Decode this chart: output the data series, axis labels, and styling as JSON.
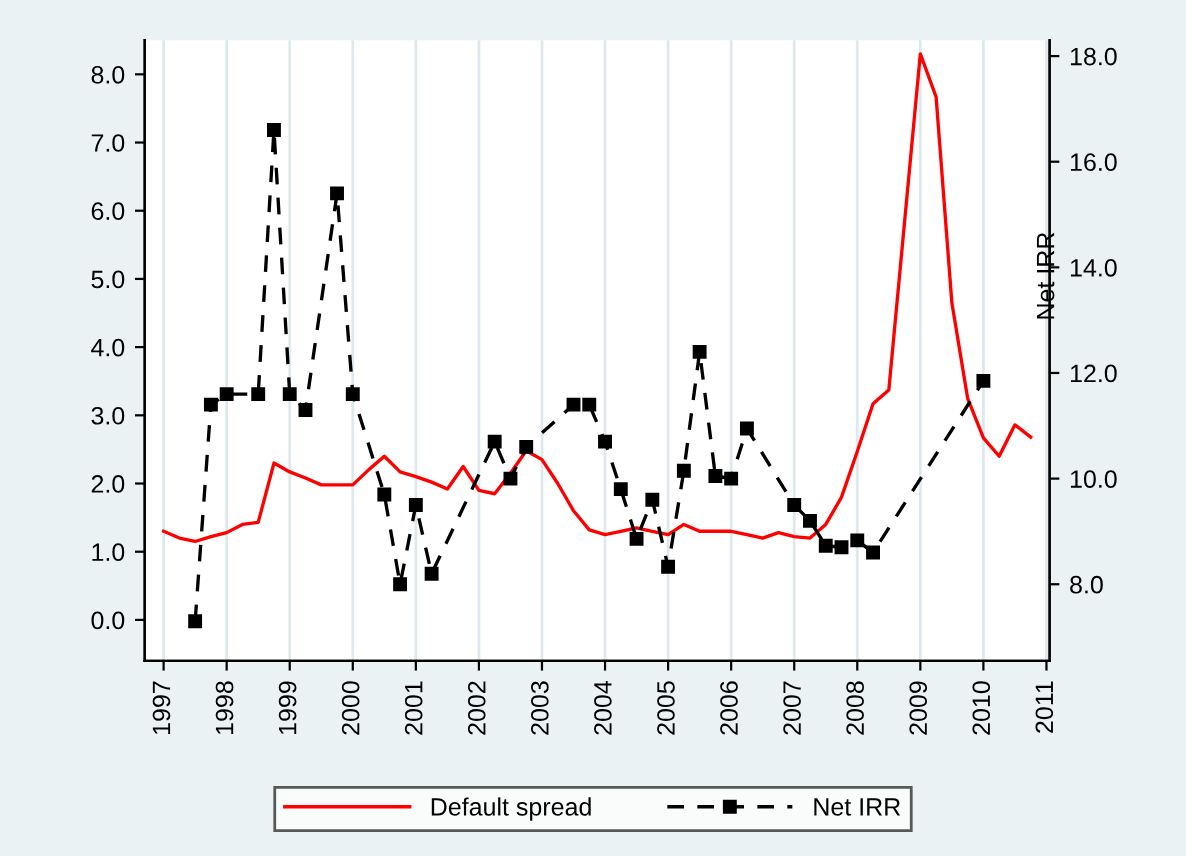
{
  "chart_data": {
    "type": "line",
    "y2label": "Net IRR",
    "xlim": [
      1996.7,
      2011.05
    ],
    "xticks": [
      1997,
      1998,
      1999,
      2000,
      2001,
      2002,
      2003,
      2004,
      2005,
      2006,
      2007,
      2008,
      2009,
      2010,
      2011
    ],
    "ylim": [
      -0.6,
      8.5
    ],
    "yticks": [
      {
        "value": 0,
        "label": "0.0"
      },
      {
        "value": 1,
        "label": "1.0"
      },
      {
        "value": 2,
        "label": "2.0"
      },
      {
        "value": 3,
        "label": "3.0"
      },
      {
        "value": 4,
        "label": "4.0"
      },
      {
        "value": 5,
        "label": "5.0"
      },
      {
        "value": 6,
        "label": "6.0"
      },
      {
        "value": 7,
        "label": "7.0"
      },
      {
        "value": 8,
        "label": "8.0"
      }
    ],
    "y2lim": [
      6.55,
      18.3
    ],
    "y2ticks": [
      {
        "value": 8,
        "label": "8.0"
      },
      {
        "value": 10,
        "label": "10.0"
      },
      {
        "value": 12,
        "label": "12.0"
      },
      {
        "value": 14,
        "label": "14.0"
      },
      {
        "value": 16,
        "label": "16.0"
      },
      {
        "value": 18,
        "label": "18.0"
      }
    ],
    "grid": "x",
    "legend": "bottom",
    "series": [
      {
        "name": "Default spread",
        "color": "#ff0000",
        "marker": "none",
        "line_style": "solid",
        "x": [
          1997,
          1997.25,
          1997.5,
          1997.75,
          1998,
          1998.25,
          1998.5,
          1998.75,
          1999,
          1999.25,
          1999.5,
          1999.75,
          2000,
          2000.25,
          2000.5,
          2000.75,
          2001,
          2001.25,
          2001.5,
          2001.75,
          2002,
          2002.25,
          2002.5,
          2002.75,
          2003,
          2003.25,
          2003.5,
          2003.75,
          2004,
          2004.25,
          2004.5,
          2004.75,
          2005,
          2005.25,
          2005.5,
          2005.75,
          2006,
          2006.25,
          2006.5,
          2006.75,
          2007,
          2007.25,
          2007.5,
          2007.75,
          2008,
          2008.25,
          2008.5,
          2009,
          2009.25,
          2009.5,
          2009.75,
          2010,
          2010.25,
          2010.5,
          2010.75
        ],
        "values": [
          1.3,
          1.2,
          1.15,
          1.22,
          1.28,
          1.4,
          1.43,
          2.3,
          2.17,
          2.08,
          1.98,
          1.98,
          1.98,
          2.2,
          2.4,
          2.17,
          2.1,
          2.02,
          1.92,
          2.25,
          1.9,
          1.85,
          2.15,
          2.48,
          2.35,
          2.0,
          1.6,
          1.32,
          1.25,
          1.3,
          1.35,
          1.3,
          1.25,
          1.4,
          1.3,
          1.3,
          1.3,
          1.25,
          1.2,
          1.28,
          1.22,
          1.2,
          1.4,
          1.8,
          2.47,
          3.17,
          3.37,
          8.3,
          7.67,
          4.65,
          3.25,
          2.67,
          2.4,
          2.86,
          2.68
        ]
      },
      {
        "name": "Net IRR",
        "color": "#000000",
        "axis": "y2",
        "marker": "square",
        "line_style": "dashed",
        "x": [
          1997.5,
          1997.75,
          1998,
          1998.5,
          1998.75,
          1999,
          1999.25,
          1999.75,
          2000,
          2000.5,
          2000.75,
          2001,
          2001.25,
          2002.25,
          2002.5,
          2002.75,
          2003.5,
          2003.75,
          2004,
          2004.25,
          2004.5,
          2004.75,
          2005,
          2005.25,
          2005.5,
          2005.75,
          2006,
          2006.25,
          2007,
          2007.25,
          2007.5,
          2007.75,
          2008,
          2008.25,
          2010
        ],
        "values": [
          7.3,
          11.4,
          11.6,
          11.6,
          16.6,
          11.6,
          11.3,
          15.4,
          11.6,
          9.7,
          8.0,
          9.5,
          8.2,
          10.7,
          10.0,
          10.6,
          11.4,
          11.4,
          10.7,
          9.8,
          8.86,
          9.6,
          8.33,
          10.15,
          12.4,
          10.05,
          10.0,
          10.95,
          9.5,
          9.2,
          8.73,
          8.7,
          8.83,
          8.6,
          11.85
        ]
      }
    ]
  }
}
